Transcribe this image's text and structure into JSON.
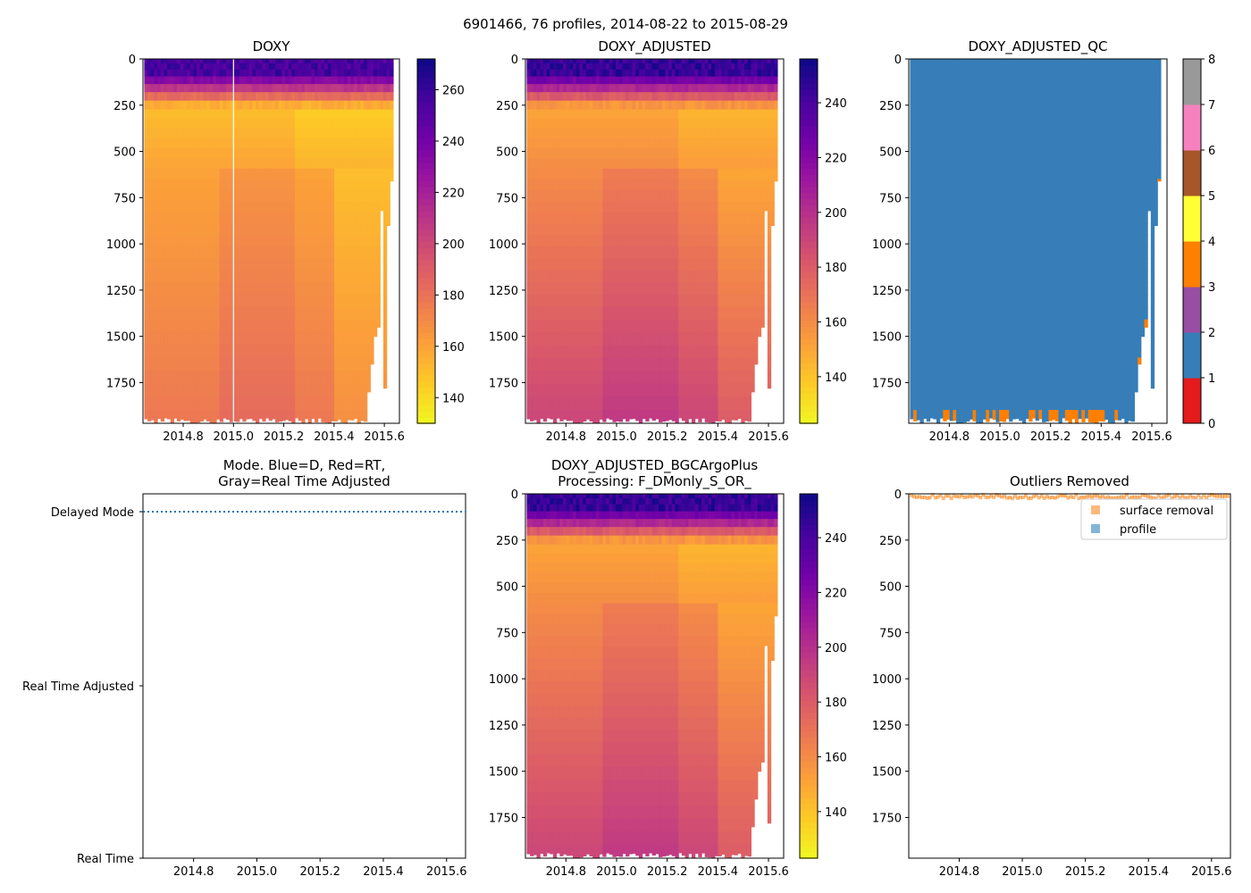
{
  "suptitle": "6901466, 76 profiles, 2014-08-22 to 2015-08-29",
  "colors": {
    "plasma_r": [
      "#f0f921",
      "#fdca26",
      "#fb9f3a",
      "#ed7953",
      "#d8576b",
      "#bd3786",
      "#9c179e",
      "#7201a8",
      "#46039f",
      "#0d0887"
    ],
    "qc": [
      "#e41a1c",
      "#377eb8",
      "#4daf4a",
      "#984ea3",
      "#ff7f00",
      "#ffff33",
      "#a65628",
      "#f781bf",
      "#999999"
    ],
    "mode_line": "#1f77b4",
    "surface_removal": "#ff7f0e",
    "profile": "#1f77b4"
  },
  "chart_data": [
    {
      "id": "doxy",
      "type": "heatmap",
      "title": "DOXY",
      "x_tick_labels": [
        "2014.8",
        "2015.0",
        "2015.2",
        "2015.4",
        "2015.6"
      ],
      "y_tick_labels": [
        "0",
        "250",
        "500",
        "750",
        "1000",
        "1250",
        "1500",
        "1750"
      ],
      "xlim": [
        2014.64,
        2015.66
      ],
      "ylim": [
        1970,
        0
      ],
      "colorbar": {
        "vmin": 130,
        "vmax": 272,
        "ticks": [
          140,
          160,
          180,
          200,
          220,
          240,
          260
        ]
      },
      "profiles": 76,
      "surface_value": 250,
      "deep_value": 178
    },
    {
      "id": "doxy-adjusted",
      "type": "heatmap",
      "title": "DOXY_ADJUSTED",
      "x_tick_labels": [
        "2014.8",
        "2015.0",
        "2015.2",
        "2015.4",
        "2015.6"
      ],
      "y_tick_labels": [
        "0",
        "250",
        "500",
        "750",
        "1000",
        "1250",
        "1500",
        "1750"
      ],
      "xlim": [
        2014.64,
        2015.66
      ],
      "ylim": [
        1970,
        0
      ],
      "colorbar": {
        "vmin": 123,
        "vmax": 256,
        "ticks": [
          140,
          160,
          180,
          200,
          220,
          240
        ]
      },
      "profiles": 76,
      "surface_value": 240,
      "deep_value": 190
    },
    {
      "id": "doxy-adjusted-qc",
      "type": "heatmap",
      "title": "DOXY_ADJUSTED_QC",
      "x_tick_labels": [
        "2014.8",
        "2015.0",
        "2015.2",
        "2015.4",
        "2015.6"
      ],
      "y_tick_labels": [
        "0",
        "250",
        "500",
        "750",
        "1000",
        "1250",
        "1500",
        "1750"
      ],
      "xlim": [
        2014.64,
        2015.66
      ],
      "ylim": [
        1970,
        0
      ],
      "colorbar": {
        "vmin": 0,
        "vmax": 8,
        "ticks": [
          0,
          1,
          2,
          3,
          4,
          5,
          6,
          7,
          8
        ]
      },
      "dominant_flag": 1,
      "outlier_flag": 4
    },
    {
      "id": "mode",
      "type": "line",
      "title": "Mode. Blue=D, Red=RT,",
      "title2": "Gray=Real Time Adjusted",
      "x_tick_labels": [
        "2014.8",
        "2015.0",
        "2015.2",
        "2015.4",
        "2015.6"
      ],
      "xlim": [
        2014.64,
        2015.66
      ],
      "y_categories": [
        "Delayed Mode",
        "Real Time Adjusted",
        "Real Time"
      ],
      "series": [
        {
          "name": "Delayed Mode",
          "value": "Delayed Mode",
          "style": "dotted"
        }
      ]
    },
    {
      "id": "bgcargoplus",
      "type": "heatmap",
      "title": "DOXY_ADJUSTED_BGCArgoPlus",
      "title2": "Processing: F_DMonly_S_OR_",
      "x_tick_labels": [
        "2014.8",
        "2015.0",
        "2015.2",
        "2015.4",
        "2015.6"
      ],
      "y_tick_labels": [
        "0",
        "250",
        "500",
        "750",
        "1000",
        "1250",
        "1500",
        "1750"
      ],
      "xlim": [
        2014.64,
        2015.66
      ],
      "ylim": [
        1970,
        0
      ],
      "colorbar": {
        "vmin": 123,
        "vmax": 256,
        "ticks": [
          140,
          160,
          180,
          200,
          220,
          240
        ]
      },
      "profiles": 76,
      "surface_value": 240,
      "deep_value": 190
    },
    {
      "id": "outliers",
      "type": "scatter",
      "title": "Outliers Removed",
      "x_tick_labels": [
        "2014.8",
        "2015.0",
        "2015.2",
        "2015.4",
        "2015.6"
      ],
      "y_tick_labels": [
        "0",
        "250",
        "500",
        "750",
        "1000",
        "1250",
        "1500",
        "1750"
      ],
      "xlim": [
        2014.64,
        2015.66
      ],
      "ylim": [
        1970,
        0
      ],
      "legend": {
        "placement": "upper-right",
        "entries": [
          "surface removal",
          "profile"
        ]
      },
      "series": [
        {
          "name": "surface removal",
          "depth_range": [
            0,
            20
          ]
        }
      ]
    }
  ]
}
